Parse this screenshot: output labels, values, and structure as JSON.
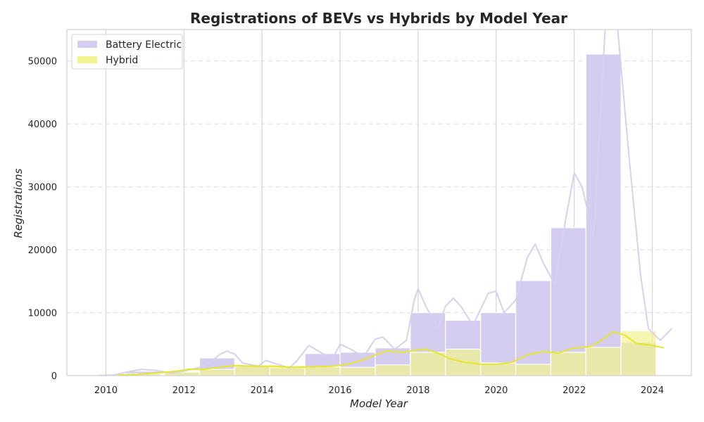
{
  "chart_data": {
    "type": "bar",
    "title": "Registrations of BEVs vs Hybrids by Model Year",
    "xlabel": "Model Year",
    "ylabel": "Registrations",
    "xlim": [
      2009,
      2025
    ],
    "ylim": [
      0,
      55000
    ],
    "x_ticks": [
      2010,
      2012,
      2014,
      2016,
      2018,
      2020,
      2022,
      2024
    ],
    "y_ticks": [
      0,
      10000,
      20000,
      30000,
      40000,
      50000
    ],
    "grid": true,
    "legend_position": "top-left",
    "bin_width": 0.9,
    "bins_x": [
      2010.5,
      2011.5,
      2012.4,
      2013.3,
      2014.2,
      2015.1,
      2016.0,
      2016.9,
      2017.8,
      2018.7,
      2019.6,
      2020.5,
      2021.4,
      2022.3,
      2023.2
    ],
    "series": [
      {
        "name": "Battery Electric",
        "color": "#d5cdef",
        "line_color": "#d7d0ef",
        "values": [
          700,
          500,
          2800,
          1600,
          1200,
          3500,
          3700,
          4400,
          10000,
          8800,
          10000,
          15100,
          23500,
          51100,
          5300
        ],
        "kde": [
          [
            2009.8,
            0
          ],
          [
            2010.2,
            100
          ],
          [
            2010.5,
            500
          ],
          [
            2010.9,
            1000
          ],
          [
            2011.3,
            800
          ],
          [
            2011.7,
            400
          ],
          [
            2012.0,
            700
          ],
          [
            2012.4,
            1300
          ],
          [
            2012.7,
            2200
          ],
          [
            2012.9,
            3300
          ],
          [
            2013.1,
            3900
          ],
          [
            2013.3,
            3400
          ],
          [
            2013.5,
            2000
          ],
          [
            2013.9,
            1500
          ],
          [
            2014.1,
            2400
          ],
          [
            2014.4,
            1800
          ],
          [
            2014.7,
            1200
          ],
          [
            2014.9,
            2400
          ],
          [
            2015.2,
            4800
          ],
          [
            2015.5,
            3700
          ],
          [
            2015.8,
            2600
          ],
          [
            2016.0,
            5000
          ],
          [
            2016.3,
            4100
          ],
          [
            2016.6,
            3000
          ],
          [
            2016.9,
            5800
          ],
          [
            2017.1,
            6100
          ],
          [
            2017.4,
            4200
          ],
          [
            2017.7,
            5600
          ],
          [
            2017.9,
            12000
          ],
          [
            2018.0,
            13800
          ],
          [
            2018.2,
            11000
          ],
          [
            2018.5,
            7600
          ],
          [
            2018.7,
            11000
          ],
          [
            2018.9,
            12300
          ],
          [
            2019.1,
            11000
          ],
          [
            2019.4,
            8000
          ],
          [
            2019.8,
            13100
          ],
          [
            2020.0,
            13400
          ],
          [
            2020.2,
            10000
          ],
          [
            2020.5,
            12000
          ],
          [
            2020.8,
            18800
          ],
          [
            2021.0,
            20900
          ],
          [
            2021.2,
            18000
          ],
          [
            2021.5,
            14500
          ],
          [
            2021.8,
            25500
          ],
          [
            2022.0,
            32200
          ],
          [
            2022.2,
            30000
          ],
          [
            2022.5,
            22000
          ],
          [
            2022.8,
            56000
          ],
          [
            2023.1,
            56000
          ],
          [
            2023.4,
            35000
          ],
          [
            2023.7,
            16000
          ],
          [
            2023.9,
            7500
          ],
          [
            2024.2,
            5600
          ],
          [
            2024.5,
            7500
          ]
        ]
      },
      {
        "name": "Hybrid",
        "color": "#f1f290",
        "line_color": "#e6e62a",
        "values": [
          300,
          600,
          1000,
          1500,
          1600,
          1400,
          1300,
          1700,
          3700,
          4200,
          2000,
          1800,
          3700,
          4500,
          7100
        ],
        "kde": [
          [
            2010.3,
            100
          ],
          [
            2010.8,
            200
          ],
          [
            2011.3,
            400
          ],
          [
            2011.8,
            700
          ],
          [
            2012.1,
            1000
          ],
          [
            2012.5,
            1000
          ],
          [
            2012.9,
            1300
          ],
          [
            2013.3,
            1600
          ],
          [
            2013.8,
            1500
          ],
          [
            2014.3,
            1500
          ],
          [
            2014.8,
            1300
          ],
          [
            2015.3,
            1400
          ],
          [
            2015.8,
            1500
          ],
          [
            2016.2,
            1800
          ],
          [
            2016.6,
            2500
          ],
          [
            2016.9,
            3300
          ],
          [
            2017.2,
            3900
          ],
          [
            2017.6,
            3700
          ],
          [
            2017.9,
            4000
          ],
          [
            2018.2,
            4200
          ],
          [
            2018.5,
            3600
          ],
          [
            2018.8,
            2700
          ],
          [
            2019.2,
            2100
          ],
          [
            2019.6,
            1800
          ],
          [
            2020.0,
            1800
          ],
          [
            2020.4,
            2100
          ],
          [
            2020.8,
            3300
          ],
          [
            2021.2,
            3800
          ],
          [
            2021.6,
            3600
          ],
          [
            2022.0,
            4400
          ],
          [
            2022.4,
            4600
          ],
          [
            2022.7,
            5600
          ],
          [
            2023.0,
            7000
          ],
          [
            2023.3,
            6400
          ],
          [
            2023.6,
            5100
          ],
          [
            2024.0,
            4800
          ],
          [
            2024.3,
            4400
          ]
        ]
      }
    ]
  }
}
